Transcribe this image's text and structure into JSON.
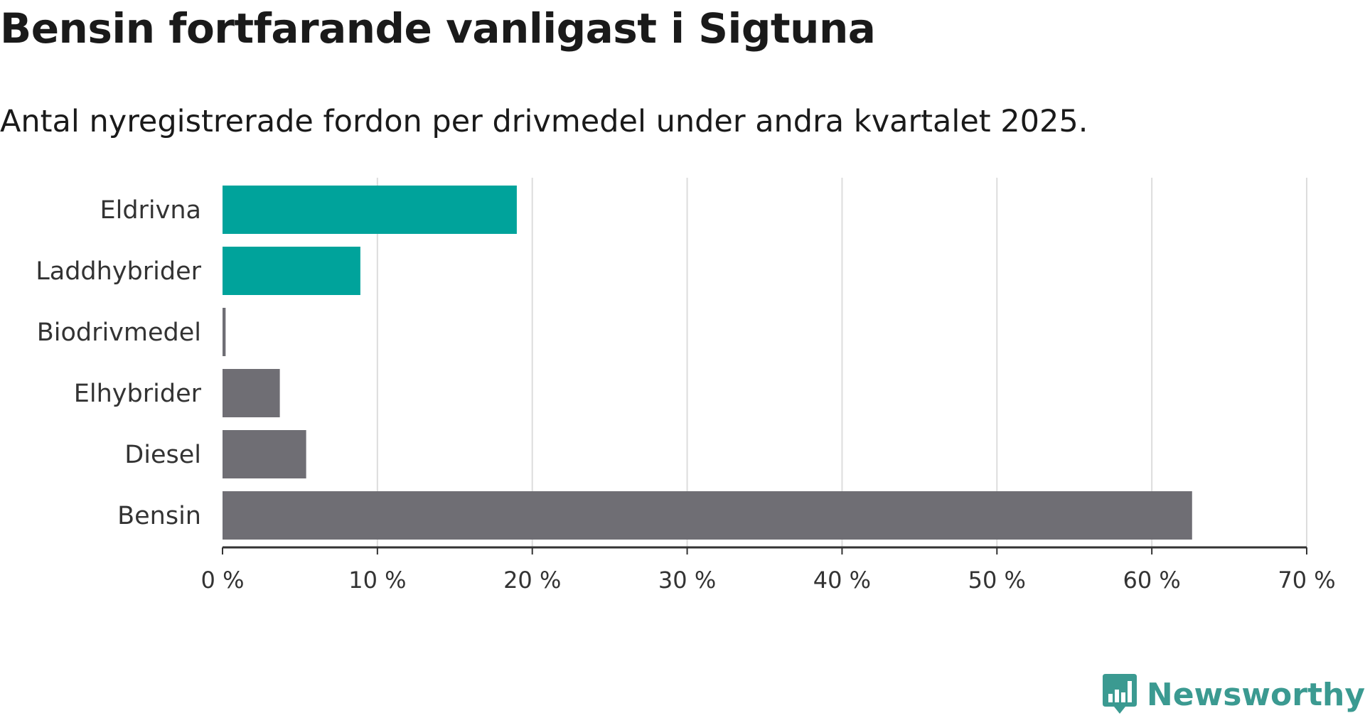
{
  "title": "Bensin fortfarande vanligast i Sigtuna",
  "subtitle": "Antal nyregistrerade fordon per drivmedel under andra kvartalet 2025.",
  "brand": {
    "name": "Newsworthy",
    "color": "#3b9a91",
    "icon": "bar-chart-speech-bubble-icon"
  },
  "colors": {
    "highlight": "#00a39b",
    "default": "#6f6e74",
    "grid": "#dddddd",
    "axis": "#333333"
  },
  "chart_data": {
    "type": "bar",
    "orientation": "horizontal",
    "categories": [
      "Eldrivna",
      "Laddhybrider",
      "Biodrivmedel",
      "Elhybrider",
      "Diesel",
      "Bensin"
    ],
    "values": [
      19.0,
      8.9,
      0.2,
      3.7,
      5.4,
      62.6
    ],
    "highlighted": [
      true,
      true,
      false,
      false,
      false,
      false
    ],
    "unit": "%",
    "xlim": [
      0,
      70
    ],
    "xticks": [
      0,
      10,
      20,
      30,
      40,
      50,
      60,
      70
    ],
    "xtick_labels": [
      "0 %",
      "10 %",
      "20 %",
      "30 %",
      "40 %",
      "50 %",
      "60 %",
      "70 %"
    ],
    "grid": "vertical",
    "legend": "none"
  }
}
